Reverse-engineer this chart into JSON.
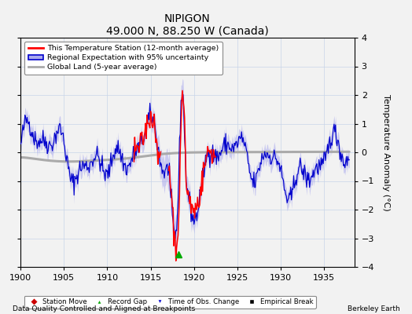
{
  "title": "NIPIGON",
  "subtitle": "49.000 N, 88.250 W (Canada)",
  "xlabel_bottom": "Data Quality Controlled and Aligned at Breakpoints",
  "xlabel_right": "Berkeley Earth",
  "ylabel": "Temperature Anomaly (°C)",
  "xmin": 1900,
  "xmax": 1938.5,
  "ymin": -4,
  "ymax": 4,
  "yticks": [
    -4,
    -3,
    -2,
    -1,
    0,
    1,
    2,
    3,
    4
  ],
  "xticks": [
    1900,
    1905,
    1910,
    1915,
    1920,
    1925,
    1930,
    1935
  ],
  "red_color": "#ff0000",
  "blue_color": "#0000cc",
  "blue_shade_color": "#aaaaee",
  "gray_color": "#aaaaaa",
  "bg_color": "#f2f2f2",
  "grid_color": "#c8d4e8",
  "green_color": "#00aa00"
}
